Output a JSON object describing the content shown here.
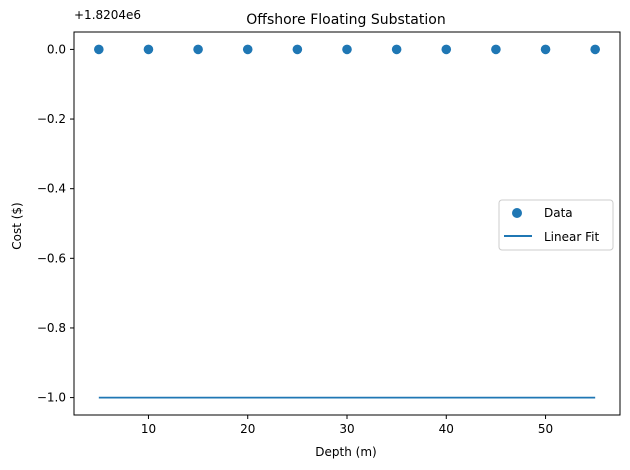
{
  "chart_data": {
    "type": "scatter",
    "title": "Offshore Floating Substation",
    "xlabel": "Depth (m)",
    "ylabel": "Cost ($)",
    "offset_label": "+1.8204e6",
    "xlim": [
      2.5,
      57.5
    ],
    "ylim": [
      -1.05,
      0.05
    ],
    "x_ticks": [
      10,
      20,
      30,
      40,
      50
    ],
    "x_tick_labels": [
      "10",
      "20",
      "30",
      "40",
      "50"
    ],
    "y_ticks": [
      0.0,
      -0.2,
      -0.4,
      -0.6,
      -0.8,
      -1.0
    ],
    "y_tick_labels": [
      "0.0",
      "−0.2",
      "−0.4",
      "−0.6",
      "−0.8",
      "−1.0"
    ],
    "grid": false,
    "legend_position": "center-right",
    "series": [
      {
        "name": "Data",
        "type": "scatter",
        "color": "#1f77b4",
        "x": [
          5,
          10,
          15,
          20,
          25,
          30,
          35,
          40,
          45,
          50,
          55
        ],
        "y": [
          0,
          0,
          0,
          0,
          0,
          0,
          0,
          0,
          0,
          0,
          0
        ]
      },
      {
        "name": "Linear Fit",
        "type": "line",
        "color": "#1f77b4",
        "x": [
          5,
          55
        ],
        "y": [
          -1,
          -1
        ]
      }
    ]
  }
}
